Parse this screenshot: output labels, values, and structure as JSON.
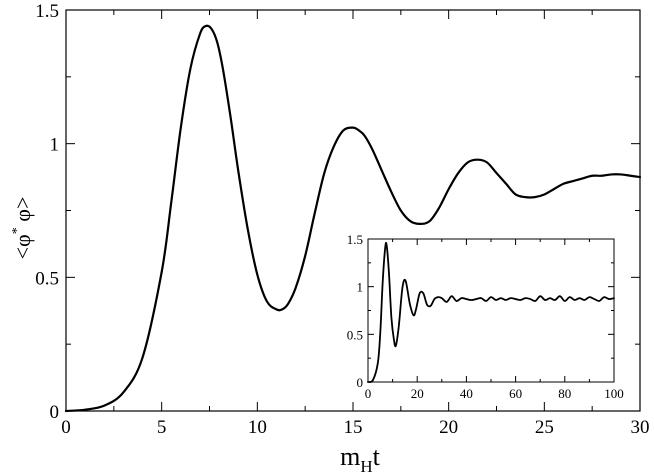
{
  "chart_data": [
    {
      "type": "line",
      "role": "main",
      "title": "",
      "xlabel": "m_H t",
      "xlabel_parts": {
        "base": "m",
        "sub": "H",
        "after": "t"
      },
      "ylabel": "<φ* φ>",
      "ylabel_parts": {
        "pre": "<φ",
        "sup": "*",
        "post": " φ>"
      },
      "xlim": [
        0,
        30
      ],
      "ylim": [
        0,
        1.5
      ],
      "grid": false,
      "legend": "none",
      "color": "#000000",
      "x_ticks": [
        {
          "value": 0,
          "label": "0"
        },
        {
          "value": 5,
          "label": "5"
        },
        {
          "value": 10,
          "label": "10"
        },
        {
          "value": 15,
          "label": "15"
        },
        {
          "value": 20,
          "label": "20"
        },
        {
          "value": 25,
          "label": "25"
        },
        {
          "value": 30,
          "label": "30"
        }
      ],
      "y_ticks": [
        {
          "value": 0,
          "label": "0"
        },
        {
          "value": 0.5,
          "label": "0.5"
        },
        {
          "value": 1,
          "label": "1"
        },
        {
          "value": 1.5,
          "label": "1.5"
        }
      ],
      "series": [
        {
          "x": [
            0,
            1,
            2,
            3,
            4,
            5,
            5.5,
            6,
            6.5,
            7,
            7.3,
            7.6,
            7.9,
            8.2,
            8.6,
            9,
            9.5,
            10,
            10.5,
            11,
            11.3,
            11.6,
            12,
            12.5,
            13,
            13.5,
            14,
            14.5,
            15,
            15.3,
            15.6,
            16,
            16.5,
            17,
            17.5,
            18,
            18.5,
            19,
            19.5,
            20,
            20.5,
            21,
            21.5,
            22,
            22.5,
            23,
            23.5,
            24,
            24.5,
            25,
            25.5,
            26,
            26.5,
            27,
            27.5,
            28,
            28.5,
            29,
            29.5,
            30
          ],
          "y": [
            0,
            0.005,
            0.02,
            0.07,
            0.2,
            0.52,
            0.78,
            1.06,
            1.28,
            1.41,
            1.44,
            1.43,
            1.38,
            1.28,
            1.1,
            0.9,
            0.68,
            0.51,
            0.41,
            0.38,
            0.38,
            0.4,
            0.46,
            0.58,
            0.74,
            0.89,
            0.99,
            1.05,
            1.06,
            1.05,
            1.03,
            0.98,
            0.9,
            0.82,
            0.75,
            0.71,
            0.7,
            0.71,
            0.76,
            0.83,
            0.89,
            0.93,
            0.94,
            0.93,
            0.89,
            0.85,
            0.81,
            0.8,
            0.8,
            0.81,
            0.83,
            0.85,
            0.86,
            0.87,
            0.88,
            0.88,
            0.885,
            0.885,
            0.88,
            0.875
          ]
        }
      ]
    },
    {
      "type": "line",
      "role": "inset",
      "title": "",
      "xlabel": "",
      "ylabel": "",
      "xlim": [
        0,
        100
      ],
      "ylim": [
        0,
        1.5
      ],
      "grid": false,
      "legend": "none",
      "color": "#000000",
      "x_ticks": [
        {
          "value": 0,
          "label": "0"
        },
        {
          "value": 20,
          "label": "20"
        },
        {
          "value": 40,
          "label": "40"
        },
        {
          "value": 60,
          "label": "60"
        },
        {
          "value": 80,
          "label": "80"
        },
        {
          "value": 100,
          "label": "100"
        }
      ],
      "y_ticks": [
        {
          "value": 0,
          "label": "0"
        },
        {
          "value": 0.5,
          "label": "0.5"
        },
        {
          "value": 1,
          "label": "1"
        },
        {
          "value": 1.5,
          "label": "1.5"
        }
      ],
      "series": [
        {
          "x": [
            0,
            2,
            4,
            5,
            6,
            7,
            7.6,
            8.5,
            9.5,
            10.5,
            11.3,
            12.5,
            14,
            15.3,
            17,
            18.5,
            19.5,
            21,
            22.5,
            24,
            25.5,
            27,
            28.5,
            30,
            32,
            34,
            36,
            38,
            40,
            42,
            44,
            46,
            48,
            50,
            52,
            54,
            56,
            58,
            60,
            62,
            64,
            66,
            68,
            70,
            72,
            74,
            76,
            78,
            80,
            82,
            84,
            86,
            88,
            90,
            92,
            94,
            96,
            98,
            100
          ],
          "y": [
            0,
            0.02,
            0.2,
            0.52,
            1.06,
            1.41,
            1.43,
            1.15,
            0.68,
            0.45,
            0.38,
            0.58,
            0.99,
            1.06,
            0.82,
            0.7,
            0.76,
            0.93,
            0.93,
            0.81,
            0.8,
            0.87,
            0.89,
            0.88,
            0.84,
            0.9,
            0.85,
            0.88,
            0.87,
            0.86,
            0.87,
            0.88,
            0.85,
            0.89,
            0.86,
            0.88,
            0.86,
            0.88,
            0.87,
            0.86,
            0.88,
            0.87,
            0.85,
            0.9,
            0.86,
            0.88,
            0.86,
            0.9,
            0.85,
            0.89,
            0.86,
            0.88,
            0.86,
            0.89,
            0.87,
            0.85,
            0.89,
            0.87,
            0.88
          ]
        }
      ]
    }
  ]
}
